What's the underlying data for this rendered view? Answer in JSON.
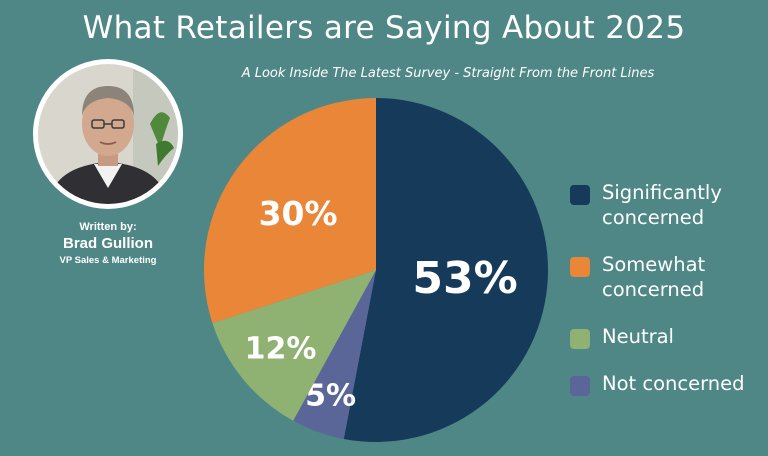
{
  "header": {
    "title": "What Retailers are Saying About 2025",
    "subtitle": "A Look Inside The Latest Survey - Straight From the Front Lines"
  },
  "author": {
    "written_by": "Written by:",
    "name": "Brad Gullion",
    "role": "VP Sales & Marketing"
  },
  "chart_data": {
    "type": "pie",
    "title": "",
    "slices": [
      {
        "label": "Significantly concerned",
        "value": 53,
        "display": "53%",
        "color": "#163a59"
      },
      {
        "label": "Not concerned",
        "value": 5,
        "display": "5%",
        "color": "#5b6698"
      },
      {
        "label": "Neutral",
        "value": 12,
        "display": "12%",
        "color": "#8fb273"
      },
      {
        "label": "Somewhat concerned",
        "value": 30,
        "display": "30%",
        "color": "#ea8638"
      }
    ],
    "legend_position": "right",
    "legend": [
      {
        "label": "Significantly concerned",
        "lines": [
          "Significantly",
          "concerned"
        ],
        "color": "#163a59"
      },
      {
        "label": "Somewhat concerned",
        "lines": [
          "Somewhat",
          "concerned"
        ],
        "color": "#ea8638"
      },
      {
        "label": "Neutral",
        "lines": [
          "Neutral"
        ],
        "color": "#8fb273"
      },
      {
        "label": "Not concerned",
        "lines": [
          "Not concerned"
        ],
        "color": "#5b6698"
      }
    ]
  }
}
